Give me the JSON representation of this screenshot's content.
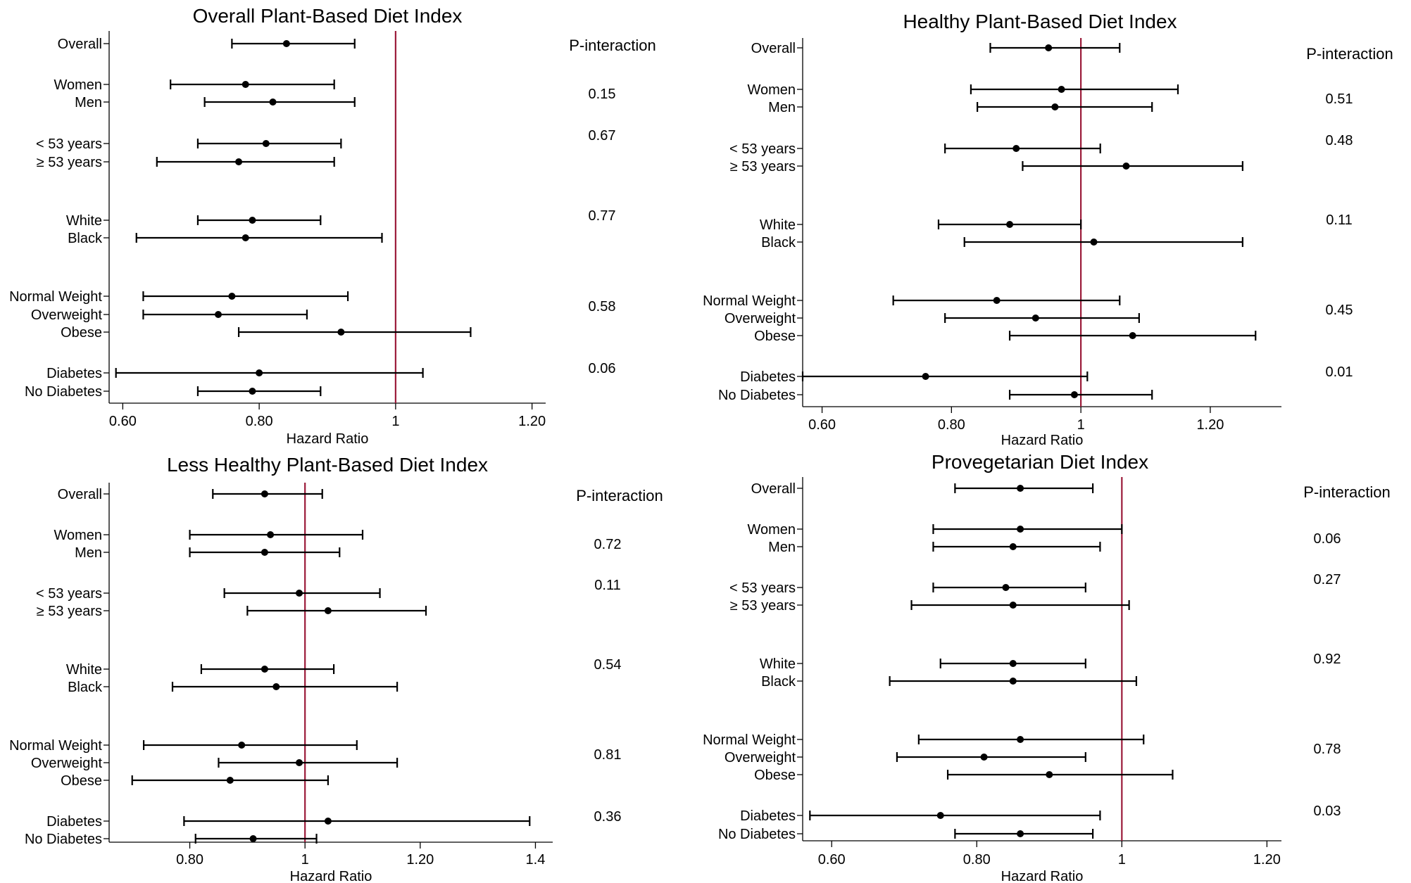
{
  "colors": {
    "refline": "#9b1b3a",
    "marker": "#000000",
    "axis": "#000000"
  },
  "chart_data": [
    {
      "type": "forest",
      "title": "Overall Plant-Based Diet Index",
      "xlabel": "Hazard Ratio",
      "xlim": [
        0.58,
        1.22
      ],
      "xticks": [
        0.6,
        0.8,
        1,
        1.2
      ],
      "xtick_labels": [
        "0.60",
        "0.80",
        "1",
        "1.20"
      ],
      "reference_line": 1,
      "p_header": "P-interaction",
      "rows": [
        {
          "label": "Overall",
          "hr": 0.84,
          "lo": 0.76,
          "hi": 0.94
        },
        {
          "label": "Women",
          "hr": 0.78,
          "lo": 0.67,
          "hi": 0.91
        },
        {
          "label": "Men",
          "hr": 0.82,
          "lo": 0.72,
          "hi": 0.94
        },
        {
          "label": "< 53 years",
          "hr": 0.81,
          "lo": 0.71,
          "hi": 0.92
        },
        {
          "label": "≥ 53 years",
          "hr": 0.77,
          "lo": 0.65,
          "hi": 0.91
        },
        {
          "label": "White",
          "hr": 0.79,
          "lo": 0.71,
          "hi": 0.89
        },
        {
          "label": "Black",
          "hr": 0.78,
          "lo": 0.62,
          "hi": 0.98
        },
        {
          "label": "Normal Weight",
          "hr": 0.76,
          "lo": 0.63,
          "hi": 0.93
        },
        {
          "label": "Overweight",
          "hr": 0.74,
          "lo": 0.63,
          "hi": 0.87
        },
        {
          "label": "Obese",
          "hr": 0.92,
          "lo": 0.77,
          "hi": 1.11
        },
        {
          "label": "Diabetes",
          "hr": 0.8,
          "lo": 0.59,
          "hi": 1.04
        },
        {
          "label": "No Diabetes",
          "hr": 0.79,
          "lo": 0.71,
          "hi": 0.89
        }
      ],
      "p_values": [
        {
          "after": "Men",
          "value": "0.15"
        },
        {
          "after": "< 53 years",
          "value": "0.67"
        },
        {
          "after": "White",
          "value": "0.77"
        },
        {
          "after": "Overweight",
          "value": "0.58"
        },
        {
          "after": "Diabetes",
          "value": "0.06"
        }
      ]
    },
    {
      "type": "forest",
      "title": "Healthy Plant-Based Diet Index",
      "xlabel": "Hazard Ratio",
      "xlim": [
        0.57,
        1.31
      ],
      "xticks": [
        0.6,
        0.8,
        1,
        1.2
      ],
      "xtick_labels": [
        "0.60",
        "0.80",
        "1",
        "1.20"
      ],
      "reference_line": 1,
      "p_header": "P-interaction",
      "rows": [
        {
          "label": "Overall",
          "hr": 0.95,
          "lo": 0.86,
          "hi": 1.06
        },
        {
          "label": "Women",
          "hr": 0.97,
          "lo": 0.83,
          "hi": 1.15
        },
        {
          "label": "Men",
          "hr": 0.96,
          "lo": 0.84,
          "hi": 1.11
        },
        {
          "label": "< 53 years",
          "hr": 0.9,
          "lo": 0.79,
          "hi": 1.03
        },
        {
          "label": "≥ 53 years",
          "hr": 1.07,
          "lo": 0.91,
          "hi": 1.25
        },
        {
          "label": "White",
          "hr": 0.89,
          "lo": 0.78,
          "hi": 1.0
        },
        {
          "label": "Black",
          "hr": 1.02,
          "lo": 0.82,
          "hi": 1.25
        },
        {
          "label": "Normal Weight",
          "hr": 0.87,
          "lo": 0.71,
          "hi": 1.06
        },
        {
          "label": "Overweight",
          "hr": 0.93,
          "lo": 0.79,
          "hi": 1.09
        },
        {
          "label": "Obese",
          "hr": 1.08,
          "lo": 0.89,
          "hi": 1.27
        },
        {
          "label": "Diabetes",
          "hr": 0.76,
          "lo": 0.57,
          "hi": 1.01
        },
        {
          "label": "No Diabetes",
          "hr": 0.99,
          "lo": 0.89,
          "hi": 1.11
        }
      ],
      "p_values": [
        {
          "after": "Men",
          "value": "0.51"
        },
        {
          "after": "< 53 years",
          "value": "0.48"
        },
        {
          "after": "White",
          "value": "0.11"
        },
        {
          "after": "Overweight",
          "value": "0.45"
        },
        {
          "after": "Diabetes",
          "value": "0.01"
        }
      ]
    },
    {
      "type": "forest",
      "title": "Less Healthy Plant-Based Diet Index",
      "xlabel": "Hazard Ratio",
      "xlim": [
        0.66,
        1.43
      ],
      "xticks": [
        0.8,
        1,
        1.2,
        1.4
      ],
      "xtick_labels": [
        "0.80",
        "1",
        "1.20",
        "1.4"
      ],
      "reference_line": 1,
      "p_header": "P-interaction",
      "rows": [
        {
          "label": "Overall",
          "hr": 0.93,
          "lo": 0.84,
          "hi": 1.03
        },
        {
          "label": "Women",
          "hr": 0.94,
          "lo": 0.8,
          "hi": 1.1
        },
        {
          "label": "Men",
          "hr": 0.93,
          "lo": 0.8,
          "hi": 1.06
        },
        {
          "label": "< 53 years",
          "hr": 0.99,
          "lo": 0.86,
          "hi": 1.13
        },
        {
          "label": "≥ 53 years",
          "hr": 1.04,
          "lo": 0.9,
          "hi": 1.21
        },
        {
          "label": "White",
          "hr": 0.93,
          "lo": 0.82,
          "hi": 1.05
        },
        {
          "label": "Black",
          "hr": 0.95,
          "lo": 0.77,
          "hi": 1.16
        },
        {
          "label": "Normal Weight",
          "hr": 0.89,
          "lo": 0.72,
          "hi": 1.09
        },
        {
          "label": "Overweight",
          "hr": 0.99,
          "lo": 0.85,
          "hi": 1.16
        },
        {
          "label": "Obese",
          "hr": 0.87,
          "lo": 0.7,
          "hi": 1.04
        },
        {
          "label": "Diabetes",
          "hr": 1.04,
          "lo": 0.79,
          "hi": 1.39
        },
        {
          "label": "No Diabetes",
          "hr": 0.91,
          "lo": 0.81,
          "hi": 1.02
        }
      ],
      "p_values": [
        {
          "after": "Men",
          "value": "0.72"
        },
        {
          "after": "< 53 years",
          "value": "0.11"
        },
        {
          "after": "White",
          "value": "0.54"
        },
        {
          "after": "Overweight",
          "value": "0.81"
        },
        {
          "after": "Diabetes",
          "value": "0.36"
        }
      ]
    },
    {
      "type": "forest",
      "title": "Provegetarian Diet Index",
      "xlabel": "Hazard Ratio",
      "xlim": [
        0.56,
        1.22
      ],
      "xticks": [
        0.6,
        0.8,
        1,
        1.2
      ],
      "xtick_labels": [
        "0.60",
        "0.80",
        "1",
        "1.20"
      ],
      "reference_line": 1,
      "p_header": "P-interaction",
      "rows": [
        {
          "label": "Overall",
          "hr": 0.86,
          "lo": 0.77,
          "hi": 0.96
        },
        {
          "label": "Women",
          "hr": 0.86,
          "lo": 0.74,
          "hi": 1.0
        },
        {
          "label": "Men",
          "hr": 0.85,
          "lo": 0.74,
          "hi": 0.97
        },
        {
          "label": "< 53 years",
          "hr": 0.84,
          "lo": 0.74,
          "hi": 0.95
        },
        {
          "label": "≥ 53 years",
          "hr": 0.85,
          "lo": 0.71,
          "hi": 1.01
        },
        {
          "label": "White",
          "hr": 0.85,
          "lo": 0.75,
          "hi": 0.95
        },
        {
          "label": "Black",
          "hr": 0.85,
          "lo": 0.68,
          "hi": 1.02
        },
        {
          "label": "Normal Weight",
          "hr": 0.86,
          "lo": 0.72,
          "hi": 1.03
        },
        {
          "label": "Overweight",
          "hr": 0.81,
          "lo": 0.69,
          "hi": 0.95
        },
        {
          "label": "Obese",
          "hr": 0.9,
          "lo": 0.76,
          "hi": 1.07
        },
        {
          "label": "Diabetes",
          "hr": 0.75,
          "lo": 0.57,
          "hi": 0.97
        },
        {
          "label": "No Diabetes",
          "hr": 0.86,
          "lo": 0.77,
          "hi": 0.96
        }
      ],
      "p_values": [
        {
          "after": "Men",
          "value": "0.06"
        },
        {
          "after": "< 53 years",
          "value": "0.27"
        },
        {
          "after": "White",
          "value": "0.92"
        },
        {
          "after": "Overweight",
          "value": "0.78"
        },
        {
          "after": "Diabetes",
          "value": "0.03"
        }
      ]
    }
  ]
}
